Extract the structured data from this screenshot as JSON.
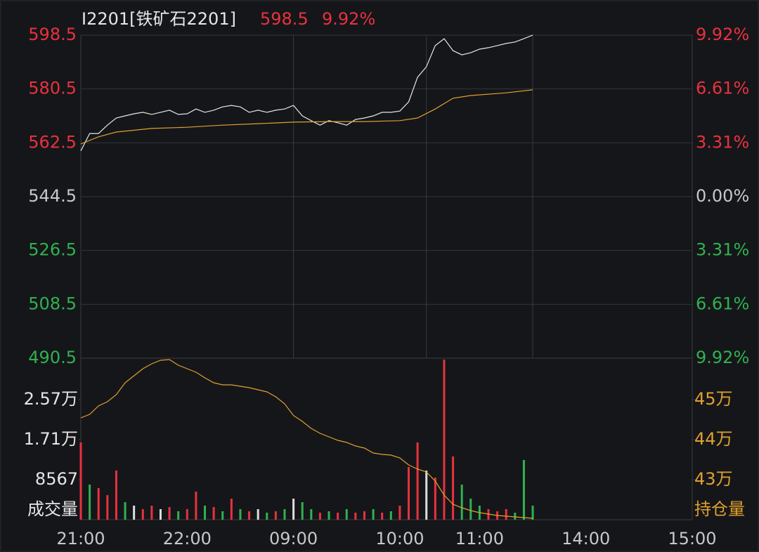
{
  "header": {
    "name": "I2201[铁矿石2201]",
    "price": "598.5",
    "change": "9.92%"
  },
  "chart_data": [
    {
      "type": "line",
      "xlim": [
        0,
        345
      ],
      "ylim": [
        490.5,
        598.5
      ],
      "yticks": [
        598.5,
        580.5,
        562.5,
        544.5,
        526.5,
        508.5,
        490.5
      ],
      "y2lim": [
        -9.92,
        9.92
      ],
      "y2ticks": [
        {
          "value": 9.92,
          "label": "9.92%"
        },
        {
          "value": 6.61,
          "label": "6.61%"
        },
        {
          "value": 3.31,
          "label": "3.31%"
        },
        {
          "value": 0,
          "label": "0.00%"
        },
        {
          "value": -3.31,
          "label": "3.31%"
        },
        {
          "value": -6.61,
          "label": "6.61%"
        },
        {
          "value": -9.92,
          "label": "9.92%"
        }
      ],
      "vgrid": [
        120,
        195,
        255
      ],
      "grid": true,
      "up_color": "#e8323c",
      "down_color": "#2fb24f",
      "flat_color": "#c8c8c8",
      "series": [
        {
          "color": "#e6e6e6",
          "x": [
            0,
            5,
            10,
            15,
            20,
            25,
            30,
            35,
            40,
            45,
            50,
            55,
            60,
            65,
            70,
            75,
            80,
            85,
            90,
            95,
            100,
            105,
            110,
            115,
            120,
            125,
            130,
            135,
            140,
            145,
            150,
            155,
            160,
            165,
            170,
            175,
            180,
            185,
            190,
            195,
            200,
            205,
            210,
            215,
            220,
            225,
            230,
            235,
            240,
            245,
            250,
            255
          ],
          "values": [
            559.8,
            565.6,
            565.6,
            568.4,
            570.8,
            571.5,
            572.2,
            572.7,
            572,
            572.7,
            573.4,
            572,
            572.2,
            573.8,
            572.7,
            573.4,
            574.5,
            575,
            574.5,
            572.7,
            573.4,
            572.7,
            573.4,
            573.8,
            575,
            571.5,
            569.9,
            568.4,
            569.9,
            569.2,
            568.4,
            570.3,
            570.8,
            571.5,
            572.7,
            572.7,
            573.1,
            576.2,
            584.4,
            587.9,
            595,
            597.3,
            593.3,
            591.9,
            592.6,
            593.8,
            594.3,
            595,
            595.7,
            596.2,
            597.3,
            598.5
          ]
        },
        {
          "color": "#e0a030",
          "x": [
            0,
            10,
            20,
            40,
            60,
            80,
            100,
            120,
            140,
            160,
            180,
            190,
            200,
            210,
            220,
            240,
            255
          ],
          "values": [
            562.1,
            564.5,
            566.1,
            567.3,
            567.7,
            568.4,
            568.9,
            569.4,
            569.6,
            569.6,
            569.9,
            570.8,
            573.8,
            577.4,
            578.3,
            579.2,
            580.2
          ]
        }
      ]
    },
    {
      "type": "bar",
      "xlim": [
        0,
        345
      ],
      "ylim": [
        0,
        34568
      ],
      "yticks": [
        {
          "value": 25701,
          "label": "2.57万"
        },
        {
          "value": 17134,
          "label": "1.71万"
        },
        8567
      ],
      "y_label": "成交量",
      "y2_label": "持仓量",
      "y2lim": [
        420000,
        460351
      ],
      "y2ticks": [
        {
          "value": 450000,
          "label": "45万"
        },
        {
          "value": 440000,
          "label": "44万"
        },
        {
          "value": 430000,
          "label": "43万"
        }
      ],
      "xticks": [
        {
          "value": 0,
          "label": "21:00"
        },
        {
          "value": 60,
          "label": "22:00"
        },
        {
          "value": 120,
          "label": "09:00"
        },
        {
          "value": 180,
          "label": "10:00"
        },
        {
          "value": 225,
          "label": "11:00"
        },
        {
          "value": 285,
          "label": "14:00"
        },
        {
          "value": 345,
          "label": "15:00"
        }
      ],
      "x": [
        0,
        5,
        10,
        15,
        20,
        25,
        30,
        35,
        40,
        45,
        50,
        55,
        60,
        65,
        70,
        75,
        80,
        85,
        90,
        95,
        100,
        105,
        110,
        115,
        120,
        125,
        130,
        135,
        140,
        145,
        150,
        155,
        160,
        165,
        170,
        175,
        180,
        185,
        190,
        195,
        200,
        205,
        210,
        215,
        220,
        225,
        230,
        235,
        240,
        245,
        250,
        255
      ],
      "values": [
        16533,
        7515,
        6764,
        5261,
        10521,
        3758,
        3006,
        2255,
        3006,
        2255,
        2705,
        1804,
        2255,
        6012,
        3006,
        2705,
        1804,
        4509,
        2255,
        1804,
        2255,
        1503,
        1804,
        2255,
        4509,
        3758,
        2255,
        1503,
        1804,
        1503,
        2255,
        1503,
        1804,
        2255,
        1503,
        1804,
        3006,
        11273,
        16533,
        10521,
        9018,
        34268,
        13527,
        7515,
        4509,
        3006,
        2255,
        1804,
        2255,
        1503,
        12776,
        3006
      ],
      "colors": [
        "#e8323c",
        "#2fb24f",
        "#e8323c",
        "#e8323c",
        "#e8323c",
        "#2fb24f",
        "#dddddd",
        "#e8323c",
        "#e8323c",
        "#dddddd",
        "#e8323c",
        "#2fb24f",
        "#e8323c",
        "#e8323c",
        "#2fb24f",
        "#e8323c",
        "#2fb24f",
        "#e8323c",
        "#2fb24f",
        "#e8323c",
        "#dddddd",
        "#2fb24f",
        "#e8323c",
        "#2fb24f",
        "#dddddd",
        "#2fb24f",
        "#2fb24f",
        "#e8323c",
        "#2fb24f",
        "#e8323c",
        "#2fb24f",
        "#e8323c",
        "#e8323c",
        "#2fb24f",
        "#e8323c",
        "#2fb24f",
        "#e8323c",
        "#e8323c",
        "#e8323c",
        "#dddddd",
        "#e8323c",
        "#e8323c",
        "#e8323c",
        "#2fb24f",
        "#2fb24f",
        "#2fb24f",
        "#e8323c",
        "#e8323c",
        "#e8323c",
        "#2fb24f",
        "#2fb24f",
        "#2fb24f"
      ],
      "label_color": "#e6e6e6",
      "y2_color": "#e0a030",
      "series": [
        {
          "axis": "y2",
          "color": "#e0a030",
          "x": [
            0,
            5,
            10,
            15,
            20,
            25,
            30,
            35,
            40,
            45,
            50,
            55,
            60,
            65,
            70,
            75,
            80,
            85,
            90,
            95,
            100,
            105,
            110,
            115,
            120,
            125,
            130,
            135,
            140,
            145,
            150,
            155,
            160,
            165,
            170,
            175,
            180,
            185,
            190,
            195,
            200,
            205,
            210,
            215,
            220,
            225,
            230,
            235,
            240,
            245,
            250,
            255
          ],
          "values": [
            445439,
            446316,
            448421,
            449474,
            451228,
            454211,
            455965,
            457719,
            458947,
            459825,
            460000,
            458596,
            457719,
            456842,
            455439,
            454211,
            453684,
            453684,
            453333,
            452982,
            452456,
            451930,
            450702,
            448947,
            446035,
            444561,
            442807,
            441579,
            440702,
            439825,
            439298,
            438421,
            437895,
            436667,
            436316,
            436140,
            435439,
            433684,
            432632,
            431930,
            429649,
            426140,
            423860,
            422982,
            422281,
            421754,
            421404,
            421053,
            420877,
            420702,
            420526,
            420351
          ]
        }
      ]
    }
  ]
}
